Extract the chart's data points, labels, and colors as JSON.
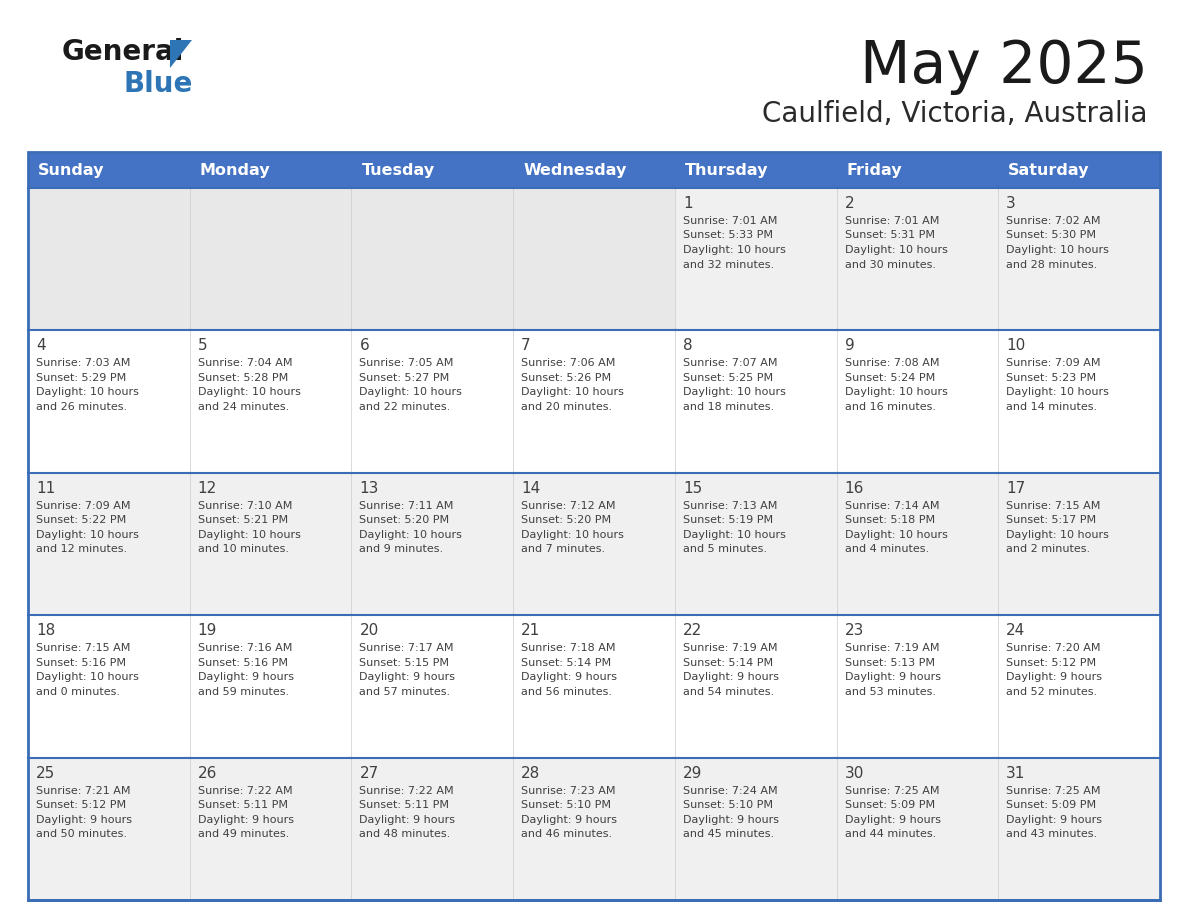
{
  "title": "May 2025",
  "subtitle": "Caulfield, Victoria, Australia",
  "header_bg_color": "#4472C4",
  "header_text_color": "#FFFFFF",
  "row_bg_colors": [
    "#F0F0F0",
    "#FFFFFF",
    "#F0F0F0",
    "#FFFFFF",
    "#F0F0F0"
  ],
  "empty_cell_color": "#E8E8E8",
  "text_color": "#404040",
  "border_color": "#3A6DB5",
  "day_headers": [
    "Sunday",
    "Monday",
    "Tuesday",
    "Wednesday",
    "Thursday",
    "Friday",
    "Saturday"
  ],
  "calendar_data": [
    [
      {
        "day": "",
        "sunrise": "",
        "sunset": "",
        "daylight": ""
      },
      {
        "day": "",
        "sunrise": "",
        "sunset": "",
        "daylight": ""
      },
      {
        "day": "",
        "sunrise": "",
        "sunset": "",
        "daylight": ""
      },
      {
        "day": "",
        "sunrise": "",
        "sunset": "",
        "daylight": ""
      },
      {
        "day": "1",
        "sunrise": "7:01 AM",
        "sunset": "5:33 PM",
        "daylight": "10 hours and 32 minutes"
      },
      {
        "day": "2",
        "sunrise": "7:01 AM",
        "sunset": "5:31 PM",
        "daylight": "10 hours and 30 minutes"
      },
      {
        "day": "3",
        "sunrise": "7:02 AM",
        "sunset": "5:30 PM",
        "daylight": "10 hours and 28 minutes"
      }
    ],
    [
      {
        "day": "4",
        "sunrise": "7:03 AM",
        "sunset": "5:29 PM",
        "daylight": "10 hours and 26 minutes"
      },
      {
        "day": "5",
        "sunrise": "7:04 AM",
        "sunset": "5:28 PM",
        "daylight": "10 hours and 24 minutes"
      },
      {
        "day": "6",
        "sunrise": "7:05 AM",
        "sunset": "5:27 PM",
        "daylight": "10 hours and 22 minutes"
      },
      {
        "day": "7",
        "sunrise": "7:06 AM",
        "sunset": "5:26 PM",
        "daylight": "10 hours and 20 minutes"
      },
      {
        "day": "8",
        "sunrise": "7:07 AM",
        "sunset": "5:25 PM",
        "daylight": "10 hours and 18 minutes"
      },
      {
        "day": "9",
        "sunrise": "7:08 AM",
        "sunset": "5:24 PM",
        "daylight": "10 hours and 16 minutes"
      },
      {
        "day": "10",
        "sunrise": "7:09 AM",
        "sunset": "5:23 PM",
        "daylight": "10 hours and 14 minutes"
      }
    ],
    [
      {
        "day": "11",
        "sunrise": "7:09 AM",
        "sunset": "5:22 PM",
        "daylight": "10 hours and 12 minutes"
      },
      {
        "day": "12",
        "sunrise": "7:10 AM",
        "sunset": "5:21 PM",
        "daylight": "10 hours and 10 minutes"
      },
      {
        "day": "13",
        "sunrise": "7:11 AM",
        "sunset": "5:20 PM",
        "daylight": "10 hours and 9 minutes"
      },
      {
        "day": "14",
        "sunrise": "7:12 AM",
        "sunset": "5:20 PM",
        "daylight": "10 hours and 7 minutes"
      },
      {
        "day": "15",
        "sunrise": "7:13 AM",
        "sunset": "5:19 PM",
        "daylight": "10 hours and 5 minutes"
      },
      {
        "day": "16",
        "sunrise": "7:14 AM",
        "sunset": "5:18 PM",
        "daylight": "10 hours and 4 minutes"
      },
      {
        "day": "17",
        "sunrise": "7:15 AM",
        "sunset": "5:17 PM",
        "daylight": "10 hours and 2 minutes"
      }
    ],
    [
      {
        "day": "18",
        "sunrise": "7:15 AM",
        "sunset": "5:16 PM",
        "daylight": "10 hours and 0 minutes"
      },
      {
        "day": "19",
        "sunrise": "7:16 AM",
        "sunset": "5:16 PM",
        "daylight": "9 hours and 59 minutes"
      },
      {
        "day": "20",
        "sunrise": "7:17 AM",
        "sunset": "5:15 PM",
        "daylight": "9 hours and 57 minutes"
      },
      {
        "day": "21",
        "sunrise": "7:18 AM",
        "sunset": "5:14 PM",
        "daylight": "9 hours and 56 minutes"
      },
      {
        "day": "22",
        "sunrise": "7:19 AM",
        "sunset": "5:14 PM",
        "daylight": "9 hours and 54 minutes"
      },
      {
        "day": "23",
        "sunrise": "7:19 AM",
        "sunset": "5:13 PM",
        "daylight": "9 hours and 53 minutes"
      },
      {
        "day": "24",
        "sunrise": "7:20 AM",
        "sunset": "5:12 PM",
        "daylight": "9 hours and 52 minutes"
      }
    ],
    [
      {
        "day": "25",
        "sunrise": "7:21 AM",
        "sunset": "5:12 PM",
        "daylight": "9 hours and 50 minutes"
      },
      {
        "day": "26",
        "sunrise": "7:22 AM",
        "sunset": "5:11 PM",
        "daylight": "9 hours and 49 minutes"
      },
      {
        "day": "27",
        "sunrise": "7:22 AM",
        "sunset": "5:11 PM",
        "daylight": "9 hours and 48 minutes"
      },
      {
        "day": "28",
        "sunrise": "7:23 AM",
        "sunset": "5:10 PM",
        "daylight": "9 hours and 46 minutes"
      },
      {
        "day": "29",
        "sunrise": "7:24 AM",
        "sunset": "5:10 PM",
        "daylight": "9 hours and 45 minutes"
      },
      {
        "day": "30",
        "sunrise": "7:25 AM",
        "sunset": "5:09 PM",
        "daylight": "9 hours and 44 minutes"
      },
      {
        "day": "31",
        "sunrise": "7:25 AM",
        "sunset": "5:09 PM",
        "daylight": "9 hours and 43 minutes"
      }
    ]
  ]
}
